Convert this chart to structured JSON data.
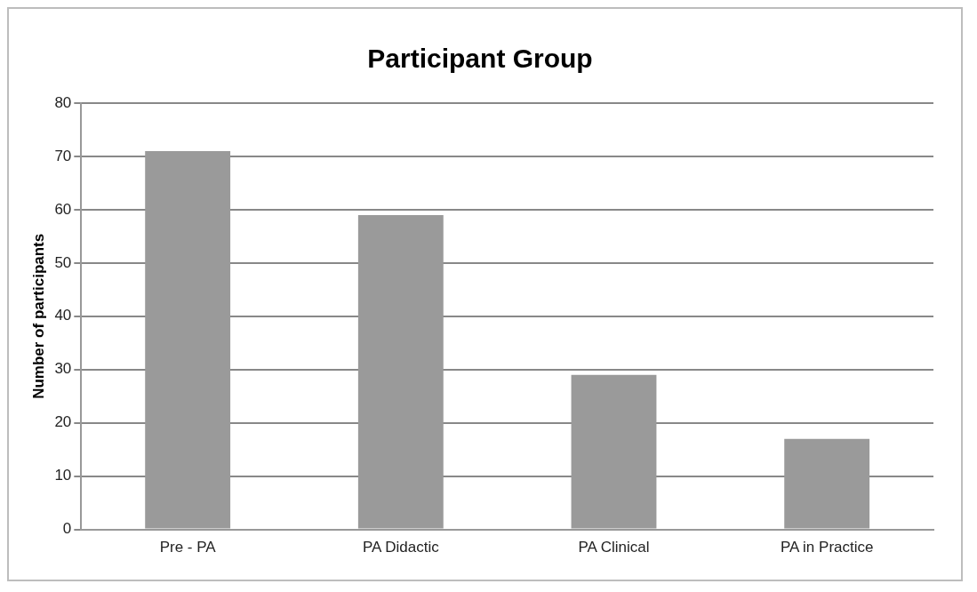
{
  "chart_data": {
    "type": "bar",
    "title": "Participant Group",
    "ylabel": "Number of participants",
    "categories": [
      "Pre - PA",
      "PA Didactic",
      "PA Clinical",
      "PA in Practice"
    ],
    "values": [
      71,
      59,
      29,
      17
    ],
    "color": "#9a9a9a",
    "ylim": [
      0,
      80
    ],
    "yticks": [
      0,
      10,
      20,
      30,
      40,
      50,
      60,
      70,
      80
    ],
    "grid": "y",
    "legend": false
  }
}
